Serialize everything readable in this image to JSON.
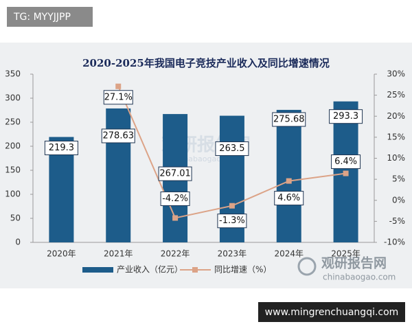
{
  "badges": {
    "top_left": "TG: MYYJJPP",
    "bottom_right": "www.mingrenchuangqi.com"
  },
  "watermark": {
    "name": "观研报告网",
    "url": "chinabaogao.com"
  },
  "chart_data": {
    "type": "bar-line",
    "title": "2020-2025年我国电子竞技产业收入及同比增速情况",
    "categories": [
      "2020年",
      "2021年",
      "2022年",
      "2023年",
      "2024年",
      "2025年"
    ],
    "series": [
      {
        "name": "产业收入（亿元）",
        "type": "bar",
        "color": "#1d5c8a",
        "values": [
          219.3,
          278.63,
          267.01,
          263.5,
          275.68,
          293.3
        ]
      },
      {
        "name": "同比增速（%）",
        "type": "line",
        "axis": "y2",
        "color": "#dca387",
        "values": [
          null,
          27.1,
          -4.2,
          -1.3,
          4.6,
          6.4
        ],
        "value_labels": [
          null,
          "27.1%",
          "-4.2%",
          "-1.3%",
          "4.6%",
          "6.4%"
        ]
      }
    ],
    "ylim": [
      0,
      350
    ],
    "yticks": [
      0,
      50,
      100,
      150,
      200,
      250,
      300,
      350
    ],
    "y2lim": [
      -10,
      30
    ],
    "y2ticks": [
      {
        "value": -10,
        "label": "-10%"
      },
      {
        "value": -5,
        "label": "-5%"
      },
      {
        "value": 0,
        "label": "0%"
      },
      {
        "value": 5,
        "label": "5%"
      },
      {
        "value": 10,
        "label": "10%"
      },
      {
        "value": 15,
        "label": "15%"
      },
      {
        "value": 20,
        "label": "20%"
      },
      {
        "value": 25,
        "label": "25%"
      },
      {
        "value": 30,
        "label": "30%"
      }
    ],
    "legend": "bottom"
  }
}
